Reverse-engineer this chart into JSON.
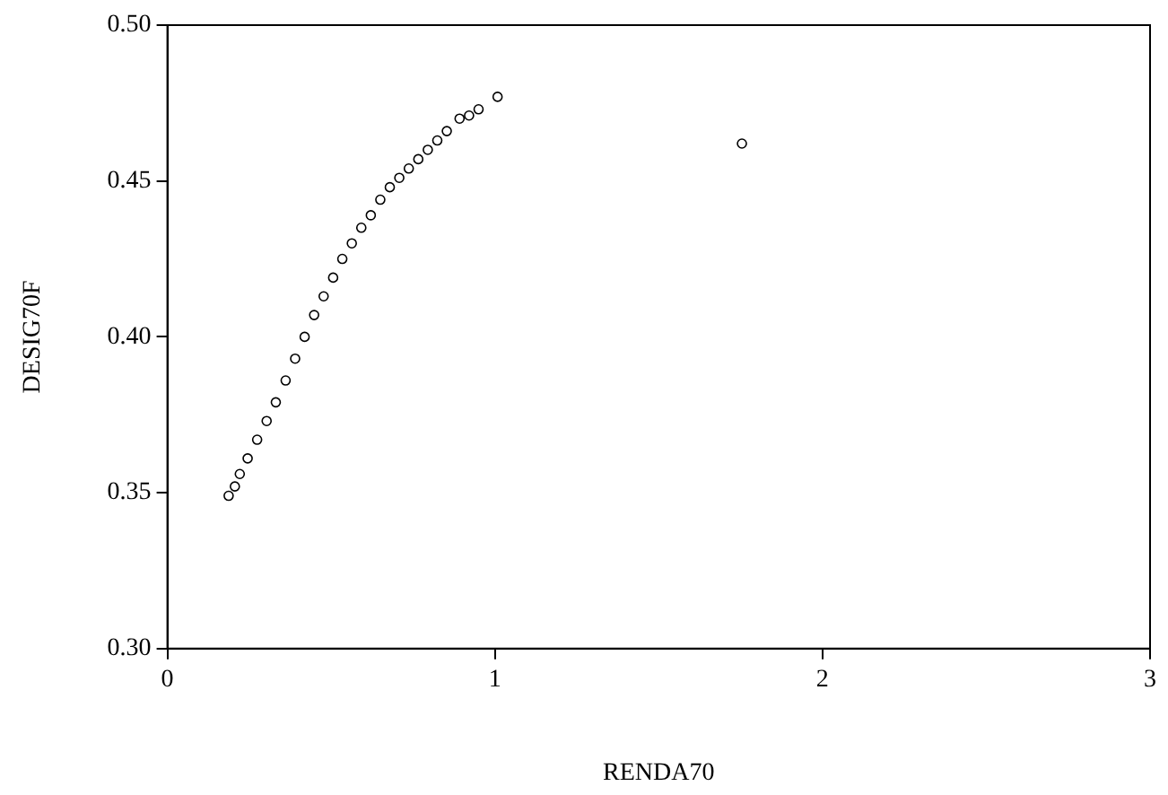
{
  "chart_data": {
    "type": "scatter",
    "xlabel": "RENDA70",
    "ylabel": "DESIG70F",
    "x": [
      0.187,
      0.206,
      0.221,
      0.245,
      0.274,
      0.303,
      0.331,
      0.361,
      0.39,
      0.419,
      0.448,
      0.477,
      0.506,
      0.534,
      0.563,
      0.592,
      0.621,
      0.65,
      0.679,
      0.708,
      0.737,
      0.766,
      0.795,
      0.824,
      0.853,
      0.892,
      0.921,
      0.95,
      1.008,
      1.754
    ],
    "values": [
      0.349,
      0.352,
      0.356,
      0.361,
      0.367,
      0.373,
      0.379,
      0.386,
      0.393,
      0.4,
      0.407,
      0.413,
      0.419,
      0.425,
      0.43,
      0.435,
      0.439,
      0.444,
      0.448,
      0.451,
      0.454,
      0.457,
      0.46,
      0.463,
      0.466,
      0.47,
      0.471,
      0.473,
      0.477,
      0.462
    ],
    "color": "#000000",
    "marker": "circle",
    "xlim": [
      0,
      3
    ],
    "xticks": [
      0,
      1,
      2,
      3
    ],
    "ylim": [
      0.3,
      0.5
    ],
    "yticks": [
      {
        "value": 0.3,
        "label": "0.30"
      },
      0.35,
      {
        "value": 0.4,
        "label": "0.40"
      },
      0.45,
      {
        "value": 0.5,
        "label": "0.50"
      }
    ],
    "grid": false,
    "legend": false
  }
}
